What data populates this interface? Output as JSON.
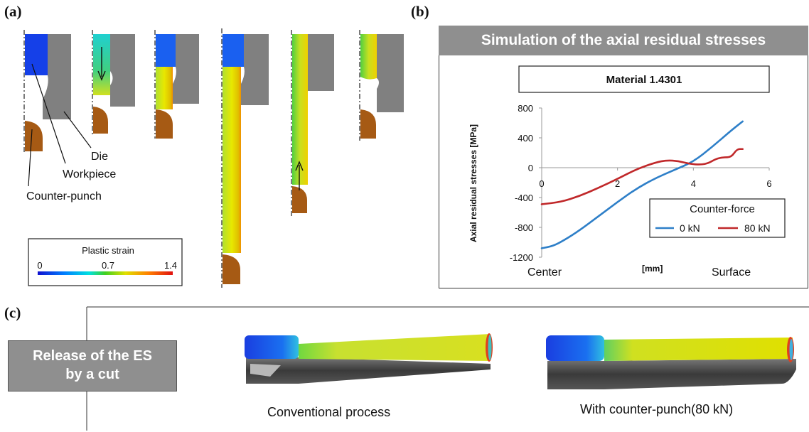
{
  "panel_labels": {
    "a": "(a)",
    "b": "(b)",
    "c": "(c)"
  },
  "panel_a": {
    "labels": {
      "die": "Die",
      "workpiece": "Workpiece",
      "counter_punch": "Counter-punch"
    },
    "colorbar": {
      "title": "Plastic strain",
      "ticks": [
        "0",
        "0.7",
        "1.4"
      ]
    }
  },
  "panel_b": {
    "banner": "Simulation of the axial residual stresses",
    "material": "Material 1.4301",
    "x_left_label": "Center",
    "x_mid_label": "[mm]",
    "x_right_label": "Surface"
  },
  "panel_c": {
    "banner": "Release of the ES by a cut",
    "caption_left": "Conventional process",
    "caption_right": "With counter-punch(80 kN)"
  },
  "colors": {
    "die": "#808080",
    "counter_punch": "#a65a14",
    "series_0kN": "#2e7fc8",
    "series_80kN": "#c0282a",
    "banner": "#8f8f8f"
  },
  "chart_data": {
    "type": "line",
    "title": "Material 1.4301",
    "xlabel": "[mm]",
    "ylabel": "Axial residual stresses [MPa]",
    "xlim": [
      0,
      6
    ],
    "ylim": [
      -1200,
      800
    ],
    "xticks": [
      0,
      2,
      4,
      6
    ],
    "yticks": [
      800,
      400,
      0,
      -400,
      -800,
      -1200
    ],
    "legend": {
      "title": "Counter-force",
      "placement": "lower-right"
    },
    "series": [
      {
        "name": "0 kN",
        "color": "#2e7fc8",
        "x": [
          0,
          0.3,
          0.6,
          1.0,
          1.5,
          2.0,
          2.5,
          3.0,
          3.5,
          4.0,
          4.5,
          5.0,
          5.3
        ],
        "y": [
          -1080,
          -1050,
          -970,
          -840,
          -650,
          -460,
          -280,
          -140,
          -30,
          80,
          280,
          500,
          620
        ]
      },
      {
        "name": "80 kN",
        "color": "#c0282a",
        "x": [
          0,
          0.5,
          1.0,
          1.5,
          2.0,
          2.5,
          3.0,
          3.3,
          3.6,
          3.9,
          4.2,
          4.4,
          4.6,
          4.8,
          5.0,
          5.15,
          5.3
        ],
        "y": [
          -490,
          -460,
          -380,
          -270,
          -150,
          -20,
          70,
          100,
          90,
          50,
          40,
          60,
          120,
          140,
          140,
          250,
          250
        ]
      }
    ]
  }
}
